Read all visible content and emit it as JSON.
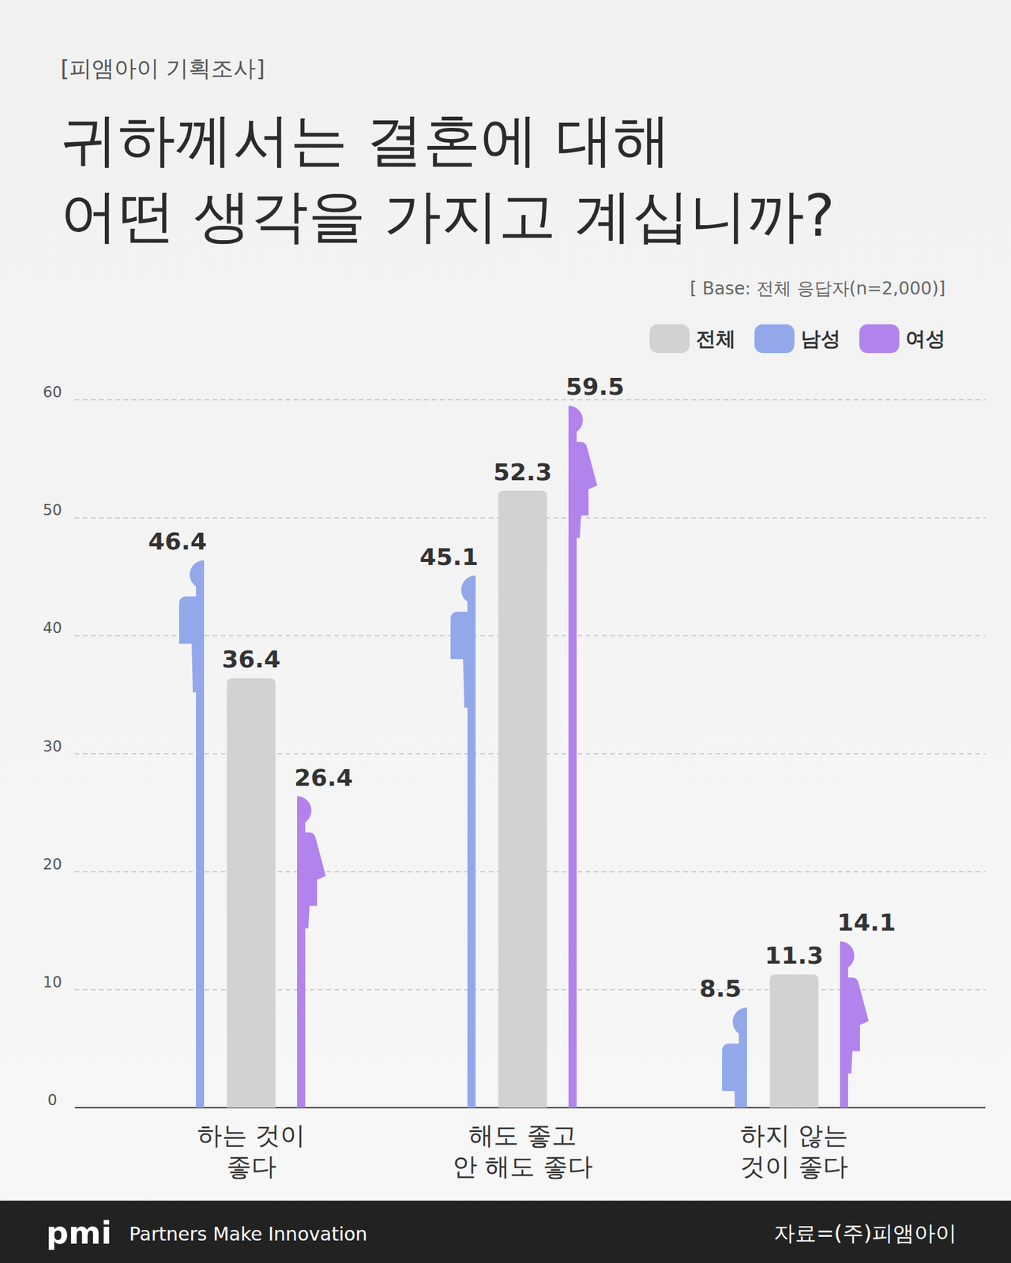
{
  "header": {
    "label": "[피앰아이 기획조사]"
  },
  "chart_data": {
    "type": "bar",
    "title": "귀하께서는 결혼에 대해\n어떤 생각을 가지고 계십니까?",
    "subtitle": "[ Base: 전체 응답자(n=2,000)]",
    "categories": [
      "하는 것이\n좋다",
      "해도 좋고\n안 해도 좋다",
      "하지 않는\n것이 좋다"
    ],
    "series": [
      {
        "name": "전체",
        "color": "#d2d2d2",
        "values": [
          36.4,
          52.3,
          11.3
        ]
      },
      {
        "name": "남성",
        "color": "#92a8ea",
        "values": [
          46.4,
          45.1,
          8.5
        ]
      },
      {
        "name": "여성",
        "color": "#b084ec",
        "values": [
          26.4,
          59.5,
          14.1
        ]
      }
    ],
    "ylim": [
      0,
      60
    ],
    "yticks": [
      0,
      10,
      20,
      30,
      40,
      50,
      60
    ],
    "grid": true,
    "legend": "top-right",
    "data_labels": true
  },
  "footer": {
    "logo": "pmi",
    "tagline": "Partners Make Innovation",
    "source": "자료=(주)피앰아이"
  }
}
